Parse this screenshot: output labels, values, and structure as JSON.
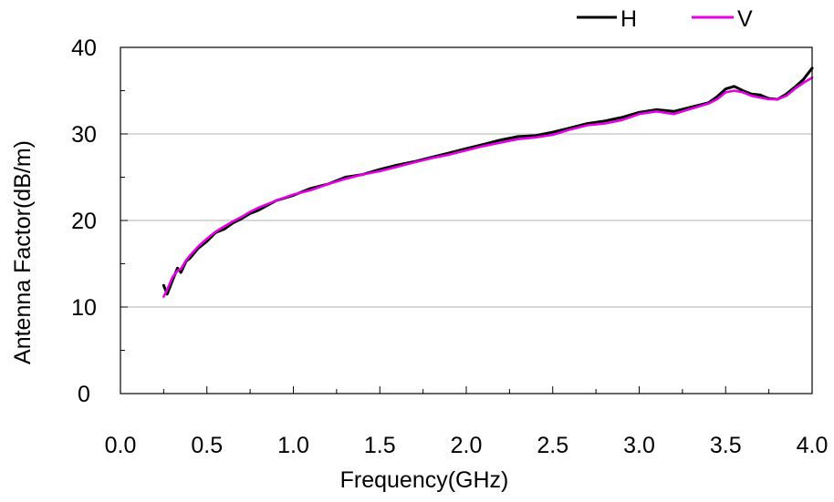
{
  "chart_data": {
    "type": "line",
    "xlabel": "Frequency(GHz)",
    "ylabel": "Antenna Factor(dB/m)",
    "xlim": [
      0.0,
      4.0
    ],
    "ylim": [
      0,
      40
    ],
    "x_ticks": [
      "0.0",
      "0.5",
      "1.0",
      "1.5",
      "2.0",
      "2.5",
      "3.0",
      "3.5",
      "4.0"
    ],
    "y_ticks": [
      "0",
      "10",
      "20",
      "30",
      "40"
    ],
    "grid": "horizontal major lines",
    "legend_position": "top-right",
    "series": [
      {
        "name": "H",
        "color": "#000000",
        "x": [
          0.25,
          0.27,
          0.3,
          0.33,
          0.35,
          0.38,
          0.4,
          0.45,
          0.5,
          0.55,
          0.6,
          0.65,
          0.7,
          0.75,
          0.8,
          0.9,
          1.0,
          1.1,
          1.2,
          1.3,
          1.4,
          1.5,
          1.6,
          1.7,
          1.8,
          1.9,
          2.0,
          2.1,
          2.2,
          2.3,
          2.4,
          2.5,
          2.6,
          2.7,
          2.8,
          2.9,
          3.0,
          3.1,
          3.2,
          3.3,
          3.4,
          3.45,
          3.5,
          3.55,
          3.6,
          3.65,
          3.7,
          3.75,
          3.8,
          3.85,
          3.9,
          3.95,
          4.0
        ],
        "y": [
          12.5,
          11.5,
          13.0,
          14.5,
          14.0,
          15.3,
          15.6,
          16.8,
          17.6,
          18.6,
          19.0,
          19.7,
          20.2,
          20.8,
          21.2,
          22.3,
          22.9,
          23.7,
          24.2,
          25.0,
          25.3,
          25.9,
          26.4,
          26.8,
          27.3,
          27.8,
          28.3,
          28.8,
          29.3,
          29.7,
          29.8,
          30.2,
          30.7,
          31.2,
          31.5,
          31.9,
          32.5,
          32.8,
          32.6,
          33.1,
          33.6,
          34.3,
          35.2,
          35.5,
          35.0,
          34.6,
          34.5,
          34.1,
          34.0,
          34.6,
          35.4,
          36.3,
          37.6
        ]
      },
      {
        "name": "V",
        "color": "#e600e6",
        "x": [
          0.25,
          0.27,
          0.3,
          0.33,
          0.35,
          0.38,
          0.4,
          0.45,
          0.5,
          0.55,
          0.6,
          0.65,
          0.7,
          0.75,
          0.8,
          0.9,
          1.0,
          1.1,
          1.2,
          1.3,
          1.4,
          1.5,
          1.6,
          1.7,
          1.8,
          1.9,
          2.0,
          2.1,
          2.2,
          2.3,
          2.4,
          2.5,
          2.6,
          2.7,
          2.8,
          2.9,
          3.0,
          3.1,
          3.2,
          3.3,
          3.4,
          3.45,
          3.5,
          3.55,
          3.6,
          3.65,
          3.7,
          3.75,
          3.8,
          3.85,
          3.9,
          3.95,
          4.0
        ],
        "y": [
          11.2,
          12.0,
          13.4,
          14.2,
          14.4,
          15.4,
          15.9,
          17.0,
          17.9,
          18.7,
          19.3,
          19.9,
          20.4,
          21.0,
          21.5,
          22.3,
          23.0,
          23.5,
          24.2,
          24.8,
          25.3,
          25.7,
          26.2,
          26.7,
          27.2,
          27.6,
          28.1,
          28.6,
          29.0,
          29.4,
          29.6,
          29.9,
          30.5,
          31.0,
          31.2,
          31.6,
          32.3,
          32.6,
          32.3,
          32.9,
          33.5,
          34.0,
          34.8,
          35.0,
          34.8,
          34.4,
          34.2,
          34.0,
          34.0,
          34.4,
          35.2,
          35.9,
          36.5
        ]
      }
    ]
  }
}
